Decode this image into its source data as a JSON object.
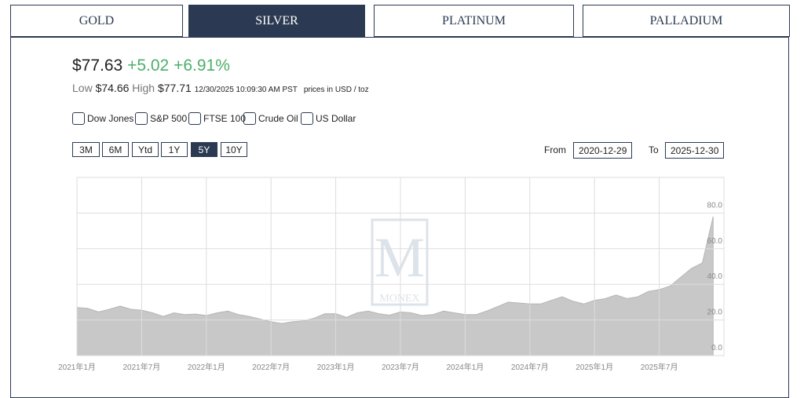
{
  "tabs": [
    {
      "label": "GOLD",
      "selected": false
    },
    {
      "label": "SILVER",
      "selected": true
    },
    {
      "label": "PLATINUM",
      "selected": false
    },
    {
      "label": "PALLADIUM",
      "selected": false
    }
  ],
  "quote": {
    "price": "$77.63",
    "change": "+5.02",
    "change_pct": "+6.91%",
    "low_label": "Low",
    "low": "$74.66",
    "high_label": "High",
    "high": "$77.71",
    "timestamp": "12/30/2025 10:09:30 AM PST",
    "units": "prices in USD / toz"
  },
  "compare": [
    "Dow Jones",
    "S&P 500",
    "FTSE 100",
    "Crude Oil",
    "US Dollar"
  ],
  "ranges": [
    {
      "label": "3M",
      "selected": false
    },
    {
      "label": "6M",
      "selected": false
    },
    {
      "label": "Ytd",
      "selected": false
    },
    {
      "label": "1Y",
      "selected": false
    },
    {
      "label": "5Y",
      "selected": true
    },
    {
      "label": "10Y",
      "selected": false
    }
  ],
  "date_range": {
    "from_label": "From",
    "from": "2020-12-29",
    "to_label": "To",
    "to": "2025-12-30"
  },
  "watermark": {
    "letter": "M",
    "name": "MONEX"
  },
  "chart_data": {
    "type": "area",
    "color": "#c8c8c8",
    "x": [
      "2021-01",
      "2021-02",
      "2021-03",
      "2021-04",
      "2021-05",
      "2021-06",
      "2021-07",
      "2021-08",
      "2021-09",
      "2021-10",
      "2021-11",
      "2021-12",
      "2022-01",
      "2022-02",
      "2022-03",
      "2022-04",
      "2022-05",
      "2022-06",
      "2022-07",
      "2022-08",
      "2022-09",
      "2022-10",
      "2022-11",
      "2022-12",
      "2023-01",
      "2023-02",
      "2023-03",
      "2023-04",
      "2023-05",
      "2023-06",
      "2023-07",
      "2023-08",
      "2023-09",
      "2023-10",
      "2023-11",
      "2023-12",
      "2024-01",
      "2024-02",
      "2024-03",
      "2024-04",
      "2024-05",
      "2024-06",
      "2024-07",
      "2024-08",
      "2024-09",
      "2024-10",
      "2024-11",
      "2024-12",
      "2025-01",
      "2025-02",
      "2025-03",
      "2025-04",
      "2025-05",
      "2025-06",
      "2025-07",
      "2025-08",
      "2025-09",
      "2025-10",
      "2025-11",
      "2025-12"
    ],
    "values": [
      27,
      26.5,
      24.5,
      26,
      27.8,
      26,
      25.5,
      24,
      22,
      24,
      23,
      23.3,
      22.5,
      24,
      25,
      23,
      22,
      20.5,
      19,
      18,
      19,
      19.5,
      21,
      23.5,
      23.5,
      21.5,
      24,
      25,
      23.5,
      22.7,
      24.5,
      24,
      22.5,
      23,
      25,
      24,
      23,
      23,
      25,
      27.5,
      30,
      29.5,
      29,
      29,
      31,
      33,
      30.5,
      29,
      31,
      32,
      34,
      32,
      33,
      36,
      37,
      39,
      44,
      49,
      52,
      78
    ],
    "ylim": [
      0,
      100
    ],
    "yticks": [
      {
        "value": 0,
        "label": "0.0"
      },
      {
        "value": 20,
        "label": "20.0"
      },
      {
        "value": 40,
        "label": "40.0"
      },
      {
        "value": 60,
        "label": "60.0"
      },
      {
        "value": 80,
        "label": "80.0"
      }
    ],
    "xticks": [
      {
        "value": "2021-01",
        "label": "2021年1月"
      },
      {
        "value": "2021-07",
        "label": "2021年7月"
      },
      {
        "value": "2022-01",
        "label": "2022年1月"
      },
      {
        "value": "2022-07",
        "label": "2022年7月"
      },
      {
        "value": "2023-01",
        "label": "2023年1月"
      },
      {
        "value": "2023-07",
        "label": "2023年7月"
      },
      {
        "value": "2024-01",
        "label": "2024年1月"
      },
      {
        "value": "2024-07",
        "label": "2024年7月"
      },
      {
        "value": "2025-01",
        "label": "2025年1月"
      },
      {
        "value": "2025-07",
        "label": "2025年7月"
      }
    ],
    "grid": true
  }
}
